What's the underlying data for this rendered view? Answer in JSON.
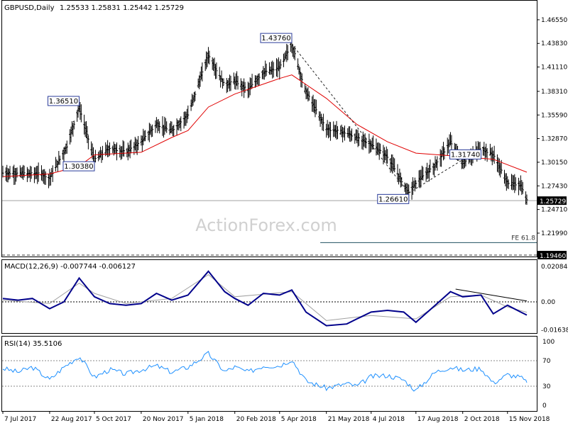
{
  "header": {
    "symbol": "GBPUSD,Daily",
    "ohlc": "1.25533 1.25831 1.25442 1.25729"
  },
  "watermark": "ActionForex.com",
  "chart_data": [
    {
      "type": "candlestick",
      "title": "GBPUSD,Daily",
      "ylim": [
        1.1946,
        1.485
      ],
      "y_ticks": [
        "1.46550",
        "1.43830",
        "1.41110",
        "1.38310",
        "1.35590",
        "1.32870",
        "1.30150",
        "1.27430",
        "1.24710",
        "1.21990"
      ],
      "x_ticks": [
        "7 Jul 2017",
        "22 Aug 2017",
        "5 Oct 2017",
        "20 Nov 2017",
        "5 Jan 2018",
        "20 Feb 2018",
        "5 Apr 2018",
        "21 May 2018",
        "4 Jul 2018",
        "17 Aug 2018",
        "2 Oct 2018",
        "15 Nov 2018"
      ],
      "last_price": "1.25729",
      "close_series": [
        {
          "date": "7 Jul 2017",
          "close": 1.289
        },
        {
          "date": "15 Aug 2017",
          "close": 1.288
        },
        {
          "date": "22 Aug 2017",
          "close": 1.283
        },
        {
          "date": "8 Sep 2017",
          "close": 1.32
        },
        {
          "date": "20 Sep 2017",
          "close": 1.3651
        },
        {
          "date": "5 Oct 2017",
          "close": 1.3038
        },
        {
          "date": "20 Oct 2017",
          "close": 1.318
        },
        {
          "date": "5 Nov 2017",
          "close": 1.313
        },
        {
          "date": "20 Nov 2017",
          "close": 1.325
        },
        {
          "date": "5 Dec 2017",
          "close": 1.345
        },
        {
          "date": "20 Dec 2017",
          "close": 1.338
        },
        {
          "date": "5 Jan 2018",
          "close": 1.356
        },
        {
          "date": "25 Jan 2018",
          "close": 1.425
        },
        {
          "date": "10 Feb 2018",
          "close": 1.39
        },
        {
          "date": "20 Feb 2018",
          "close": 1.395
        },
        {
          "date": "5 Mar 2018",
          "close": 1.385
        },
        {
          "date": "20 Mar 2018",
          "close": 1.405
        },
        {
          "date": "5 Apr 2018",
          "close": 1.41
        },
        {
          "date": "17 Apr 2018",
          "close": 1.4376
        },
        {
          "date": "30 Apr 2018",
          "close": 1.385
        },
        {
          "date": "21 May 2018",
          "close": 1.34
        },
        {
          "date": "10 Jun 2018",
          "close": 1.335
        },
        {
          "date": "4 Jul 2018",
          "close": 1.322
        },
        {
          "date": "20 Jul 2018",
          "close": 1.308
        },
        {
          "date": "10 Aug 2018",
          "close": 1.2661
        },
        {
          "date": "17 Aug 2018",
          "close": 1.278
        },
        {
          "date": "5 Sep 2018",
          "close": 1.298
        },
        {
          "date": "20 Sep 2018",
          "close": 1.325
        },
        {
          "date": "2 Oct 2018",
          "close": 1.3
        },
        {
          "date": "20 Oct 2018",
          "close": 1.3174
        },
        {
          "date": "1 Nov 2018",
          "close": 1.31
        },
        {
          "date": "15 Nov 2018",
          "close": 1.278
        },
        {
          "date": "28 Nov 2018",
          "close": 1.275
        },
        {
          "date": "4 Dec 2018",
          "close": 1.25729
        }
      ],
      "ma_series": [
        {
          "date": "7 Jul 2017",
          "value": 1.285
        },
        {
          "date": "22 Aug 2017",
          "value": 1.288
        },
        {
          "date": "20 Sep 2017",
          "value": 1.297
        },
        {
          "date": "5 Oct 2017",
          "value": 1.31
        },
        {
          "date": "20 Nov 2017",
          "value": 1.313
        },
        {
          "date": "20 Dec 2017",
          "value": 1.33
        },
        {
          "date": "5 Jan 2018",
          "value": 1.338
        },
        {
          "date": "25 Jan 2018",
          "value": 1.365
        },
        {
          "date": "20 Feb 2018",
          "value": 1.38
        },
        {
          "date": "5 Apr 2018",
          "value": 1.398
        },
        {
          "date": "17 Apr 2018",
          "value": 1.402
        },
        {
          "date": "21 May 2018",
          "value": 1.375
        },
        {
          "date": "20 Jun 2018",
          "value": 1.345
        },
        {
          "date": "20 Jul 2018",
          "value": 1.325
        },
        {
          "date": "17 Aug 2018",
          "value": 1.312
        },
        {
          "date": "2 Oct 2018",
          "value": 1.308
        },
        {
          "date": "1 Nov 2018",
          "value": 1.305
        },
        {
          "date": "4 Dec 2018",
          "value": 1.29
        }
      ],
      "labels": [
        {
          "text": "1.43760",
          "date": "17 Apr 2018",
          "value": 1.4376
        },
        {
          "text": "1.36510",
          "date": "20 Sep 2017",
          "value": 1.3651
        },
        {
          "text": "1.30380",
          "date": "5 Oct 2017",
          "value": 1.3038
        },
        {
          "text": "1.26610",
          "date": "10 Aug 2018",
          "value": 1.2661
        },
        {
          "text": "1.31740",
          "date": "20 Oct 2018",
          "value": 1.3174
        }
      ],
      "fe_label": "FE 61.8",
      "fe_level": 1.209,
      "dashed_level": "1.19460",
      "trend_lines": [
        {
          "from_date": "17 Apr 2018",
          "from": 1.4376,
          "to_date": "10 Aug 2018",
          "to": 1.2661
        },
        {
          "from_date": "10 Aug 2018",
          "from": 1.2661,
          "to_date": "20 Oct 2018",
          "to": 1.3174
        }
      ],
      "colors": {
        "price": "#000000",
        "ma": "#e00000",
        "label_box": "#2a3c9a",
        "trend": "#222222",
        "fe": "#1f4f5f"
      }
    },
    {
      "type": "line",
      "title": "MACD(12,26,9) -0.007744 -0.006127",
      "ylim": [
        -0.0175,
        0.0225
      ],
      "y_ticks": [
        "0.020848",
        "0.00",
        "-0.016389"
      ],
      "macd_series": [
        {
          "date": "7 Jul 2017",
          "value": 0.002
        },
        {
          "date": "22 Jul 2017",
          "value": 0.001
        },
        {
          "date": "5 Aug 2017",
          "value": 0.002
        },
        {
          "date": "22 Aug 2017",
          "value": -0.004
        },
        {
          "date": "5 Sep 2017",
          "value": 0.0
        },
        {
          "date": "20 Sep 2017",
          "value": 0.014
        },
        {
          "date": "5 Oct 2017",
          "value": 0.003
        },
        {
          "date": "20 Oct 2017",
          "value": -0.001
        },
        {
          "date": "5 Nov 2017",
          "value": -0.002
        },
        {
          "date": "20 Nov 2017",
          "value": -0.001
        },
        {
          "date": "5 Dec 2017",
          "value": 0.005
        },
        {
          "date": "20 Dec 2017",
          "value": 0.001
        },
        {
          "date": "5 Jan 2018",
          "value": 0.004
        },
        {
          "date": "25 Jan 2018",
          "value": 0.018
        },
        {
          "date": "10 Feb 2018",
          "value": 0.006
        },
        {
          "date": "20 Feb 2018",
          "value": 0.002
        },
        {
          "date": "5 Mar 2018",
          "value": -0.002
        },
        {
          "date": "20 Mar 2018",
          "value": 0.005
        },
        {
          "date": "5 Apr 2018",
          "value": 0.004
        },
        {
          "date": "17 Apr 2018",
          "value": 0.007
        },
        {
          "date": "1 May 2018",
          "value": -0.006
        },
        {
          "date": "21 May 2018",
          "value": -0.014
        },
        {
          "date": "10 Jun 2018",
          "value": -0.013
        },
        {
          "date": "20 Jun 2018",
          "value": -0.01
        },
        {
          "date": "4 Jul 2018",
          "value": -0.006
        },
        {
          "date": "20 Jul 2018",
          "value": -0.005
        },
        {
          "date": "5 Aug 2018",
          "value": -0.006
        },
        {
          "date": "17 Aug 2018",
          "value": -0.012
        },
        {
          "date": "5 Sep 2018",
          "value": -0.002
        },
        {
          "date": "20 Sep 2018",
          "value": 0.006
        },
        {
          "date": "2 Oct 2018",
          "value": 0.003
        },
        {
          "date": "20 Oct 2018",
          "value": 0.004
        },
        {
          "date": "1 Nov 2018",
          "value": -0.007
        },
        {
          "date": "15 Nov 2018",
          "value": -0.002
        },
        {
          "date": "28 Nov 2018",
          "value": -0.006
        },
        {
          "date": "4 Dec 2018",
          "value": -0.007744
        }
      ],
      "signal_series": [
        {
          "date": "7 Jul 2017",
          "value": 0.001
        },
        {
          "date": "22 Aug 2017",
          "value": -0.001
        },
        {
          "date": "20 Sep 2017",
          "value": 0.011
        },
        {
          "date": "5 Oct 2017",
          "value": 0.005
        },
        {
          "date": "5 Nov 2017",
          "value": -0.001
        },
        {
          "date": "20 Dec 2017",
          "value": 0.002
        },
        {
          "date": "25 Jan 2018",
          "value": 0.016
        },
        {
          "date": "20 Feb 2018",
          "value": 0.003
        },
        {
          "date": "17 Apr 2018",
          "value": 0.006
        },
        {
          "date": "21 May 2018",
          "value": -0.011
        },
        {
          "date": "4 Jul 2018",
          "value": -0.008
        },
        {
          "date": "17 Aug 2018",
          "value": -0.01
        },
        {
          "date": "20 Sep 2018",
          "value": 0.003
        },
        {
          "date": "20 Oct 2018",
          "value": 0.004
        },
        {
          "date": "15 Nov 2018",
          "value": -0.003
        },
        {
          "date": "4 Dec 2018",
          "value": -0.006127
        }
      ],
      "trend_line": {
        "from_date": "25 Sep 2018",
        "from": 0.0075,
        "to_date": "4 Dec 2018",
        "to": 0.0005
      },
      "colors": {
        "macd": "#00008b",
        "signal": "#a0a0a0",
        "zero": "#000000"
      }
    },
    {
      "type": "line",
      "title": "RSI(14) 35.5106",
      "ylim": [
        0,
        100
      ],
      "y_ticks": [
        "100",
        "70",
        "30",
        "0"
      ],
      "rsi_series": [
        {
          "date": "7 Jul 2017",
          "value": 58
        },
        {
          "date": "22 Jul 2017",
          "value": 52
        },
        {
          "date": "5 Aug 2017",
          "value": 60
        },
        {
          "date": "22 Aug 2017",
          "value": 40
        },
        {
          "date": "5 Sep 2017",
          "value": 60
        },
        {
          "date": "20 Sep 2017",
          "value": 77
        },
        {
          "date": "5 Oct 2017",
          "value": 44
        },
        {
          "date": "20 Oct 2017",
          "value": 56
        },
        {
          "date": "5 Nov 2017",
          "value": 49
        },
        {
          "date": "20 Nov 2017",
          "value": 56
        },
        {
          "date": "5 Dec 2017",
          "value": 62
        },
        {
          "date": "20 Dec 2017",
          "value": 52
        },
        {
          "date": "5 Jan 2018",
          "value": 60
        },
        {
          "date": "25 Jan 2018",
          "value": 81
        },
        {
          "date": "10 Feb 2018",
          "value": 53
        },
        {
          "date": "20 Feb 2018",
          "value": 60
        },
        {
          "date": "5 Mar 2018",
          "value": 52
        },
        {
          "date": "20 Mar 2018",
          "value": 62
        },
        {
          "date": "5 Apr 2018",
          "value": 62
        },
        {
          "date": "17 Apr 2018",
          "value": 72
        },
        {
          "date": "1 May 2018",
          "value": 38
        },
        {
          "date": "21 May 2018",
          "value": 27
        },
        {
          "date": "10 Jun 2018",
          "value": 34
        },
        {
          "date": "20 Jun 2018",
          "value": 30
        },
        {
          "date": "4 Jul 2018",
          "value": 45
        },
        {
          "date": "20 Jul 2018",
          "value": 47
        },
        {
          "date": "5 Aug 2018",
          "value": 40
        },
        {
          "date": "17 Aug 2018",
          "value": 23
        },
        {
          "date": "5 Sep 2018",
          "value": 52
        },
        {
          "date": "20 Sep 2018",
          "value": 60
        },
        {
          "date": "2 Oct 2018",
          "value": 55
        },
        {
          "date": "20 Oct 2018",
          "value": 58
        },
        {
          "date": "1 Nov 2018",
          "value": 35
        },
        {
          "date": "15 Nov 2018",
          "value": 48
        },
        {
          "date": "28 Nov 2018",
          "value": 44
        },
        {
          "date": "4 Dec 2018",
          "value": 35.5106
        }
      ],
      "colors": {
        "rsi": "#1e90ff",
        "levels": "#888888"
      }
    }
  ]
}
